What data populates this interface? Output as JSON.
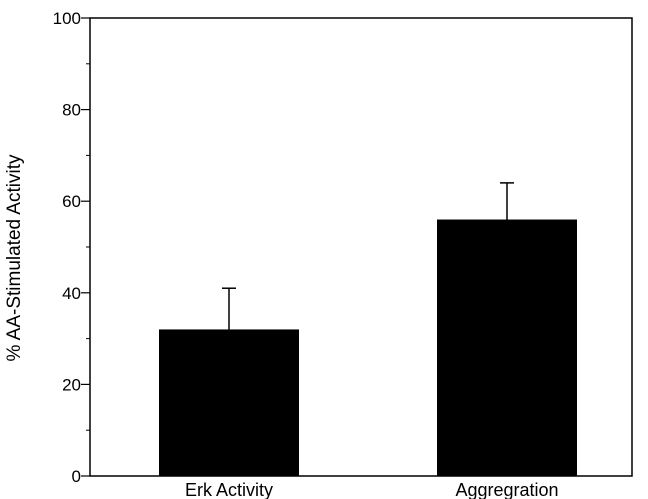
{
  "chart_data": {
    "type": "bar",
    "title": "",
    "xlabel": "",
    "ylabel": "% AA-Stimulated Activity",
    "categories": [
      "Erk Activity",
      "Aggregration"
    ],
    "values": [
      32,
      56
    ],
    "error_upper": [
      41,
      64
    ],
    "ylim": [
      0,
      100
    ],
    "yticks": [
      0,
      20,
      40,
      60,
      80,
      100
    ],
    "ytick_labels": [
      "0",
      "20",
      "40",
      "60",
      "80",
      "100"
    ],
    "minor_tick_step": 10,
    "grid": false,
    "legend": "none",
    "bar_color": "#000000",
    "axis_color": "#000000"
  }
}
